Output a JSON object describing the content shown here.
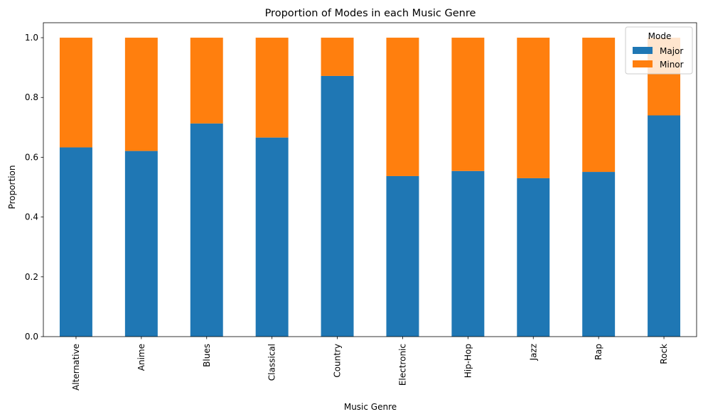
{
  "chart_data": {
    "type": "bar",
    "stacked": true,
    "title": "Proportion of Modes in each Music Genre",
    "xlabel": "Music Genre",
    "ylabel": "Proportion",
    "ylim": [
      0,
      1.05
    ],
    "yticks": [
      "0.0",
      "0.2",
      "0.4",
      "0.6",
      "0.8",
      "1.0"
    ],
    "grid": false,
    "legend": {
      "title": "Mode",
      "position": "top-right"
    },
    "categories": [
      "Alternative",
      "Anime",
      "Blues",
      "Classical",
      "Country",
      "Electronic",
      "Hip-Hop",
      "Jazz",
      "Rap",
      "Rock"
    ],
    "series": [
      {
        "name": "Major",
        "color": "#1f77b4",
        "values": [
          0.633,
          0.621,
          0.713,
          0.666,
          0.872,
          0.537,
          0.554,
          0.53,
          0.551,
          0.74
        ]
      },
      {
        "name": "Minor",
        "color": "#ff7f0e",
        "values": [
          0.367,
          0.379,
          0.287,
          0.334,
          0.128,
          0.463,
          0.446,
          0.47,
          0.449,
          0.26
        ]
      }
    ]
  }
}
